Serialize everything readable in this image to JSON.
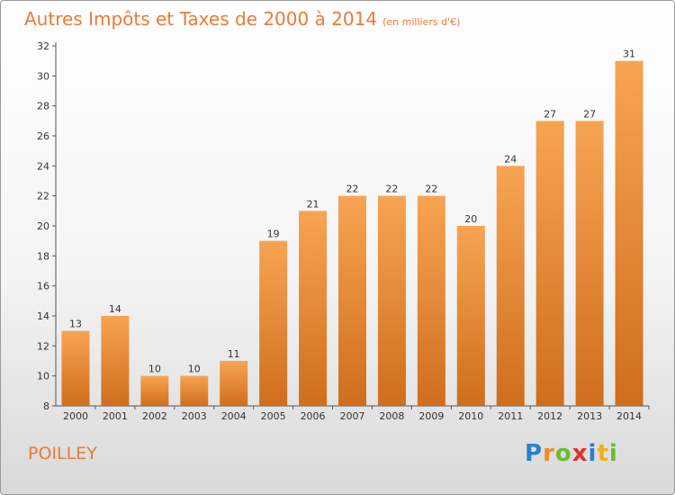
{
  "header": {
    "title": "Autres Impôts et Taxes de 2000 à 2014",
    "unit": "(en milliers d'€)"
  },
  "footer": {
    "commune": "POILLEY",
    "logo_letters": [
      {
        "ch": "P",
        "color": "#2a7fcf"
      },
      {
        "ch": "r",
        "color": "#f28a1c"
      },
      {
        "ch": "o",
        "color": "#6cbb2f"
      },
      {
        "ch": "x",
        "color": "#e2312d"
      },
      {
        "ch": "i",
        "color": "#2a7fcf"
      },
      {
        "ch": "t",
        "color": "#f2b01c"
      },
      {
        "ch": "i",
        "color": "#6cbb2f"
      }
    ]
  },
  "chart_data": {
    "type": "bar",
    "categories": [
      "2000",
      "2001",
      "2002",
      "2003",
      "2004",
      "2005",
      "2006",
      "2007",
      "2008",
      "2009",
      "2010",
      "2011",
      "2012",
      "2013",
      "2014"
    ],
    "values": [
      13,
      14,
      10,
      10,
      11,
      19,
      21,
      22,
      22,
      22,
      20,
      24,
      27,
      27,
      31
    ],
    "title": "Autres Impôts et Taxes de 2000 à 2014",
    "xlabel": "",
    "ylabel": "",
    "ylim": [
      8,
      32
    ],
    "yticks": [
      8,
      10,
      12,
      14,
      16,
      18,
      20,
      22,
      24,
      26,
      28,
      30,
      32
    ],
    "grid": false,
    "bar_color_top": "#f7a452",
    "bar_color_bottom": "#cf6e1c"
  }
}
